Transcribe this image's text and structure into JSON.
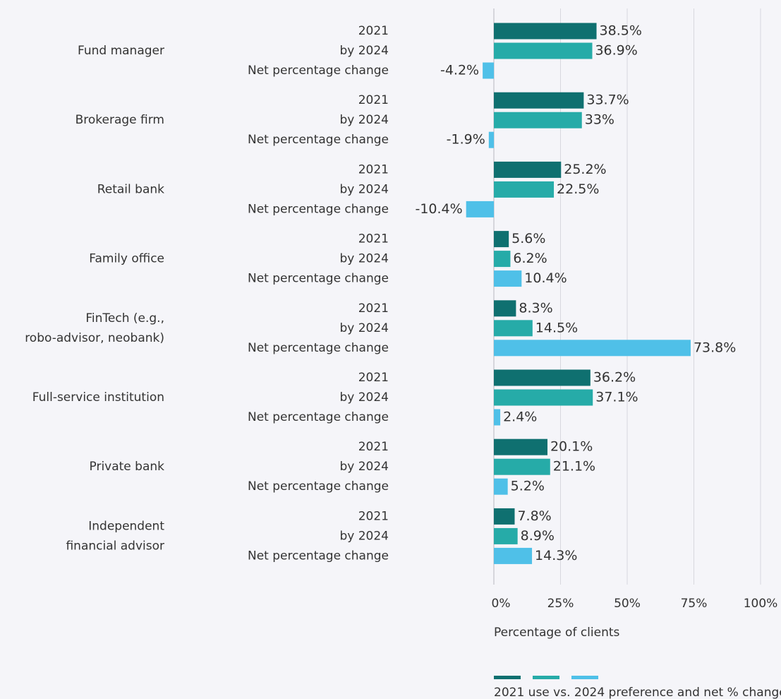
{
  "chart_data": {
    "type": "bar",
    "orientation": "horizontal",
    "x_label": "Percentage of clients",
    "legend_title": "2021 use vs. 2024 preference and net % change",
    "categories": [
      "Fund manager",
      "Brokerage firm",
      "Retail bank",
      "Family office",
      "FinTech (e.g.,\nrobo-advisor, neobank)",
      "Full-service institution",
      "Private bank",
      "Independent\nfinancial advisor"
    ],
    "series": [
      {
        "name": "2021",
        "color": "#0f7070",
        "values": [
          38.5,
          33.7,
          25.2,
          5.6,
          8.3,
          36.2,
          20.1,
          7.8
        ],
        "value_labels": [
          "38.5%",
          "33.7%",
          "25.2%",
          "5.6%",
          "8.3%",
          "36.2%",
          "20.1%",
          "7.8%"
        ]
      },
      {
        "name": "by 2024",
        "color": "#26aba8",
        "values": [
          36.9,
          33,
          22.5,
          6.2,
          14.5,
          37.1,
          21.1,
          8.9
        ],
        "value_labels": [
          "36.9%",
          "33%",
          "22.5%",
          "6.2%",
          "14.5%",
          "37.1%",
          "21.1%",
          "8.9%"
        ]
      },
      {
        "name": "Net percentage change",
        "color": "#4fc0e8",
        "values": [
          -4.2,
          -1.9,
          -10.4,
          10.4,
          73.8,
          2.4,
          5.2,
          14.3
        ],
        "value_labels": [
          "-4.2%",
          "-1.9%",
          "-10.4%",
          "10.4%",
          "73.8%",
          "2.4%",
          "5.2%",
          "14.3%"
        ]
      }
    ],
    "xlim": [
      0,
      100
    ],
    "xticks": [
      {
        "value": 0,
        "label": "0%"
      },
      {
        "value": 25,
        "label": "25%"
      },
      {
        "value": 50,
        "label": "50%"
      },
      {
        "value": 75,
        "label": "75%"
      },
      {
        "value": 100,
        "label": "100%"
      }
    ],
    "grid": true
  }
}
